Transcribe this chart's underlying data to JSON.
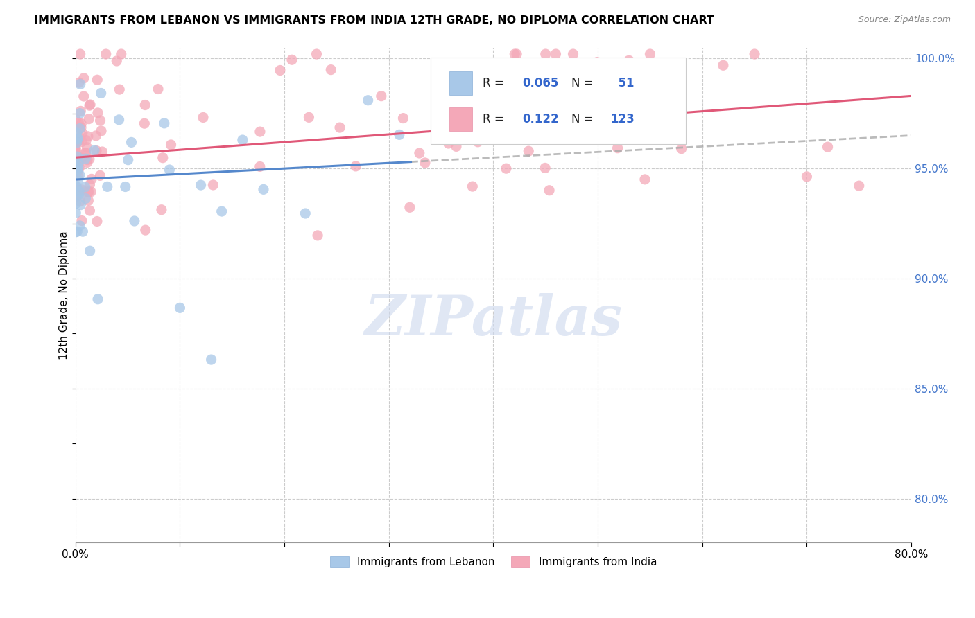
{
  "title": "IMMIGRANTS FROM LEBANON VS IMMIGRANTS FROM INDIA 12TH GRADE, NO DIPLOMA CORRELATION CHART",
  "source": "Source: ZipAtlas.com",
  "ylabel": "12th Grade, No Diploma",
  "legend_label_1": "Immigrants from Lebanon",
  "legend_label_2": "Immigrants from India",
  "R_lebanon": 0.065,
  "N_lebanon": 51,
  "R_india": 0.122,
  "N_india": 123,
  "x_min": 0.0,
  "x_max": 0.8,
  "y_min": 0.78,
  "y_max": 1.005,
  "color_lebanon": "#a8c8e8",
  "color_india": "#f4a8b8",
  "trendline_lebanon_color": "#5588cc",
  "trendline_india_color": "#e05878",
  "trendline_dashed_color": "#aaaaaa",
  "watermark": "ZIPatlas",
  "watermark_color": "#ccd8ee"
}
